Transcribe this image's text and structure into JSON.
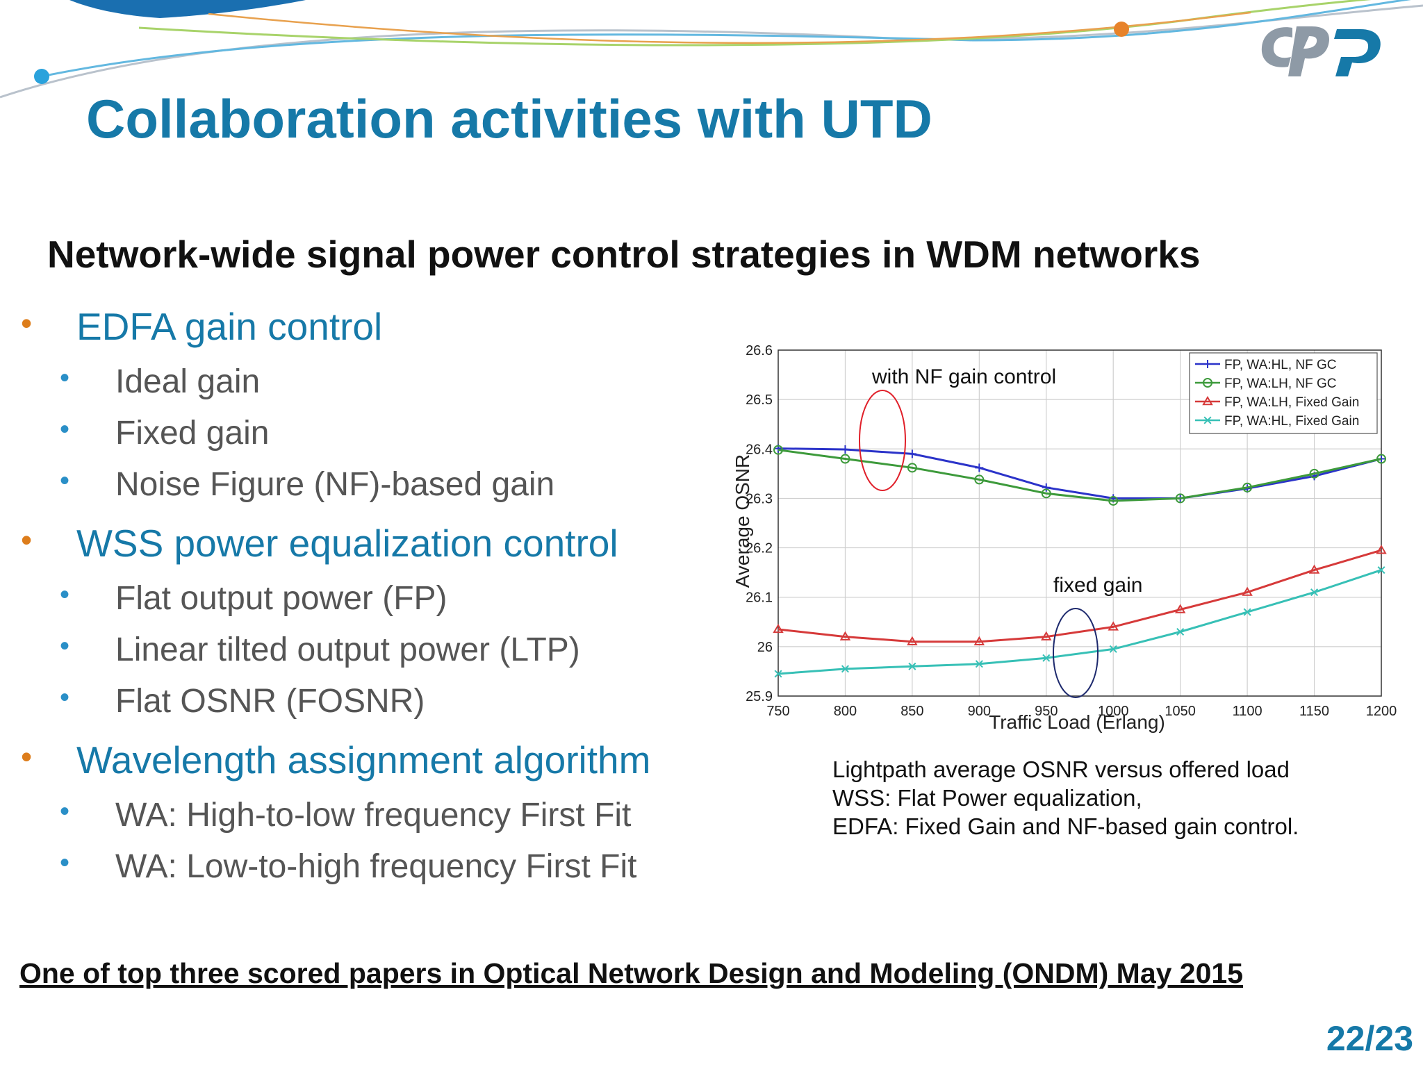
{
  "slide": {
    "title": "Collaboration activities with UTD",
    "subtitle": "Network-wide signal power control strategies in WDM networks",
    "bullet_marker": "•",
    "sections": [
      {
        "heading": "EDFA gain control",
        "items": [
          "Ideal gain",
          "Fixed gain",
          "Noise Figure (NF)-based gain"
        ]
      },
      {
        "heading": "WSS power equalization control",
        "items": [
          "Flat output power (FP)",
          "Linear tilted output power (LTP)",
          "Flat OSNR (FOSNR)"
        ]
      },
      {
        "heading": "Wavelength assignment algorithm",
        "items": [
          "WA: High-to-low frequency First Fit",
          "WA: Low-to-high frequency First Fit"
        ]
      }
    ],
    "caption": [
      "Lightpath average OSNR versus offered load",
      "WSS: Flat Power equalization,",
      "EDFA: Fixed Gain and NF-based gain control."
    ],
    "footnote": "One of top three scored papers in Optical Network Design and Modeling (ONDM) May 2015",
    "page_number": "22/23",
    "colors": {
      "title": "#1679a8",
      "level1_bullet": "#dd7d1b",
      "level2_bullet": "#2a8fc7",
      "body_text": "#555555"
    },
    "logo_icon": "cpqd-logo-icon"
  },
  "chart_data": {
    "type": "line",
    "xlabel": "Traffic Load (Erlang)",
    "ylabel": "Average OSNR",
    "x": [
      750,
      800,
      850,
      900,
      950,
      1000,
      1050,
      1100,
      1150,
      1200
    ],
    "xticks": [
      "750",
      "800",
      "850",
      "900",
      "950",
      "1000",
      "1050",
      "1100",
      "1150",
      "1200"
    ],
    "yticks": [
      "25.9",
      "26",
      "26.1",
      "26.2",
      "26.3",
      "26.4",
      "26.5",
      "26.6"
    ],
    "xlim": [
      750,
      1200
    ],
    "ylim": [
      25.9,
      26.6
    ],
    "grid": true,
    "legend_position": "top-right",
    "series": [
      {
        "name": "FP, WA:HL, NF GC",
        "marker": "plus",
        "color": "#2b33c9",
        "values": [
          26.401,
          26.399,
          26.39,
          26.362,
          26.322,
          26.3,
          26.3,
          26.32,
          26.345,
          26.38
        ]
      },
      {
        "name": "FP, WA:LH, NF GC",
        "marker": "circle",
        "color": "#3d9a3b",
        "values": [
          26.398,
          26.38,
          26.362,
          26.338,
          26.31,
          26.295,
          26.3,
          26.322,
          26.35,
          26.38
        ]
      },
      {
        "name": "FP, WA:LH, Fixed Gain",
        "marker": "triangle",
        "color": "#d63a3a",
        "values": [
          26.035,
          26.02,
          26.01,
          26.01,
          26.02,
          26.04,
          26.075,
          26.11,
          26.155,
          26.195
        ]
      },
      {
        "name": "FP, WA:HL, Fixed Gain",
        "marker": "x",
        "color": "#37c0b6",
        "values": [
          25.945,
          25.955,
          25.96,
          25.965,
          25.977,
          25.995,
          26.03,
          26.07,
          26.11,
          26.155
        ]
      }
    ],
    "annotations": [
      {
        "text": "with NF gain control",
        "ellipse_color": "#e0202a"
      },
      {
        "text": "fixed gain",
        "ellipse_color": "#1e2a6e"
      }
    ]
  }
}
